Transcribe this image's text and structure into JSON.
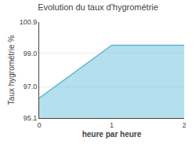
{
  "chart_data": {
    "type": "area",
    "title": "Evolution du taux d'hygrométrie",
    "xlabel": "heure par heure",
    "ylabel": "Taux hygrométrie %",
    "x": [
      0,
      1,
      2
    ],
    "values": [
      96.3,
      99.5,
      99.5
    ],
    "color": "#5bb8d4",
    "xlim": [
      0,
      2
    ],
    "ylim": [
      95.1,
      100.9
    ],
    "xticks": [
      0,
      1,
      2
    ],
    "yticks": [
      95.1,
      {
        "value": 97.0,
        "label": "97.0"
      },
      {
        "value": 99.0,
        "label": "99.0"
      },
      100.9
    ],
    "grid": true
  }
}
